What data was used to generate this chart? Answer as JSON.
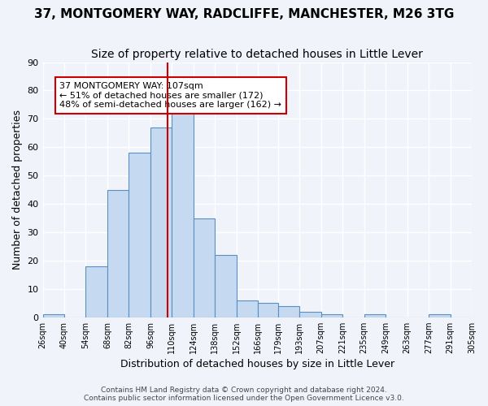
{
  "title": "37, MONTGOMERY WAY, RADCLIFFE, MANCHESTER, M26 3TG",
  "subtitle": "Size of property relative to detached houses in Little Lever",
  "xlabel": "Distribution of detached houses by size in Little Lever",
  "ylabel": "Number of detached properties",
  "bin_edges": [
    26,
    40,
    54,
    68,
    82,
    96,
    110,
    124,
    138,
    152,
    166,
    179,
    193,
    207,
    221,
    235,
    249,
    263,
    277,
    291,
    305
  ],
  "bin_labels": [
    "26sqm",
    "40sqm",
    "54sqm",
    "68sqm",
    "82sqm",
    "96sqm",
    "110sqm",
    "124sqm",
    "138sqm",
    "152sqm",
    "166sqm",
    "179sqm",
    "193sqm",
    "207sqm",
    "221sqm",
    "235sqm",
    "249sqm",
    "263sqm",
    "277sqm",
    "291sqm",
    "305sqm"
  ],
  "counts": [
    1,
    0,
    18,
    45,
    58,
    67,
    73,
    35,
    22,
    6,
    5,
    4,
    2,
    1,
    0,
    1,
    0,
    0,
    1,
    0
  ],
  "bar_color": "#c5d9f0",
  "bar_edge_color": "#5a8fc0",
  "property_value": 107,
  "vline_color": "#cc0000",
  "annotation_text": "37 MONTGOMERY WAY: 107sqm\n← 51% of detached houses are smaller (172)\n48% of semi-detached houses are larger (162) →",
  "annotation_box_color": "#ffffff",
  "annotation_box_edge": "#cc0000",
  "ylim": [
    0,
    90
  ],
  "yticks": [
    0,
    10,
    20,
    30,
    40,
    50,
    60,
    70,
    80,
    90
  ],
  "footer1": "Contains HM Land Registry data © Crown copyright and database right 2024.",
  "footer2": "Contains public sector information licensed under the Open Government Licence v3.0.",
  "background_color": "#f0f4fa",
  "grid_color": "#ffffff",
  "title_fontsize": 11,
  "subtitle_fontsize": 10,
  "axis_fontsize": 9,
  "tick_fontsize": 8
}
